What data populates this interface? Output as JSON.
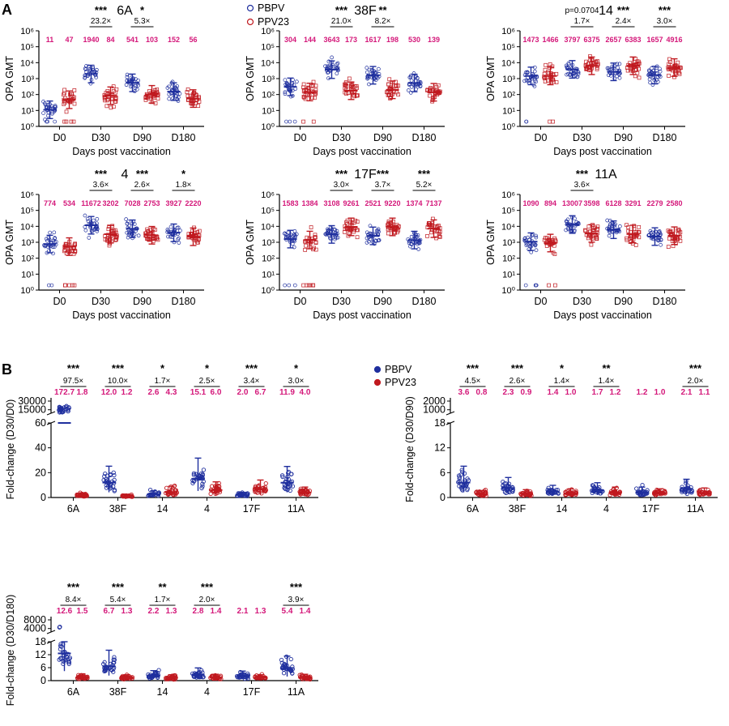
{
  "figure": {
    "panel_a_letter": "A",
    "panel_b_letter": "B",
    "legend": [
      {
        "name": "PBPV",
        "color": "#1f2f9e"
      },
      {
        "name": "PPV23",
        "color": "#c0191f"
      }
    ]
  },
  "chart_data": [
    {
      "type": "scatter",
      "panel": "A",
      "title": "6A",
      "xlabel": "Days post vaccination",
      "ylabel": "OPA GMT",
      "y_scale": "log",
      "ylim": [
        1,
        1000000
      ],
      "yticks": [
        "10⁰",
        "10¹",
        "10²",
        "10³",
        "10⁴",
        "10⁵",
        "10⁶"
      ],
      "categories": [
        "D0",
        "D30",
        "D90",
        "D180"
      ],
      "series": [
        {
          "name": "PBPV",
          "gmt": [
            11,
            1940,
            541,
            152
          ]
        },
        {
          "name": "PPV23",
          "gmt": [
            47,
            84,
            103,
            56
          ]
        }
      ],
      "gmt_labels": [
        [
          "11",
          "47"
        ],
        [
          "1940",
          "84"
        ],
        [
          "541",
          "103"
        ],
        [
          "152",
          "56"
        ]
      ],
      "comparisons": [
        null,
        {
          "stars": "***",
          "ratio": "23.2×"
        },
        {
          "stars": "*",
          "ratio": "5.3×"
        },
        null
      ]
    },
    {
      "type": "scatter",
      "panel": "A",
      "title": "38F",
      "xlabel": "Days post vaccination",
      "ylabel": "OPA GMT",
      "y_scale": "log",
      "ylim": [
        1,
        1000000
      ],
      "yticks": [
        "10⁰",
        "10¹",
        "10²",
        "10³",
        "10⁴",
        "10⁵",
        "10⁶"
      ],
      "categories": [
        "D0",
        "D30",
        "D90",
        "D180"
      ],
      "series": [
        {
          "name": "PBPV",
          "gmt": [
            304,
            3643,
            1617,
            530
          ]
        },
        {
          "name": "PPV23",
          "gmt": [
            144,
            173,
            198,
            139
          ]
        }
      ],
      "gmt_labels": [
        [
          "304",
          "144"
        ],
        [
          "3643",
          "173"
        ],
        [
          "1617",
          "198"
        ],
        [
          "530",
          "139"
        ]
      ],
      "comparisons": [
        null,
        {
          "stars": "***",
          "ratio": "21.0×"
        },
        {
          "stars": "**",
          "ratio": "8.2×"
        },
        null
      ]
    },
    {
      "type": "scatter",
      "panel": "A",
      "title": "14",
      "xlabel": "Days post vaccination",
      "ylabel": "OPA GMT",
      "y_scale": "log",
      "ylim": [
        1,
        1000000
      ],
      "yticks": [
        "10⁰",
        "10¹",
        "10²",
        "10³",
        "10⁴",
        "10⁵",
        "10⁶"
      ],
      "categories": [
        "D0",
        "D30",
        "D90",
        "D180"
      ],
      "series": [
        {
          "name": "PBPV",
          "gmt": [
            1473,
            3797,
            2657,
            1657
          ]
        },
        {
          "name": "PPV23",
          "gmt": [
            1466,
            6375,
            6383,
            4916
          ]
        }
      ],
      "gmt_labels": [
        [
          "1473",
          "1466"
        ],
        [
          "3797",
          "6375"
        ],
        [
          "2657",
          "6383"
        ],
        [
          "1657",
          "4916"
        ]
      ],
      "comparisons": [
        null,
        {
          "stars": "p=0.0704",
          "ratio": "1.7×"
        },
        {
          "stars": "***",
          "ratio": "2.4×"
        },
        {
          "stars": "***",
          "ratio": "3.0×"
        }
      ]
    },
    {
      "type": "scatter",
      "panel": "A",
      "title": "4",
      "xlabel": "Days post vaccination",
      "ylabel": "OPA GMT",
      "y_scale": "log",
      "ylim": [
        1,
        1000000
      ],
      "yticks": [
        "10⁰",
        "10¹",
        "10²",
        "10³",
        "10⁴",
        "10⁵",
        "10⁶"
      ],
      "categories": [
        "D0",
        "D30",
        "D90",
        "D180"
      ],
      "series": [
        {
          "name": "PBPV",
          "gmt": [
            774,
            11672,
            7028,
            3927
          ]
        },
        {
          "name": "PPV23",
          "gmt": [
            534,
            3202,
            2753,
            2220
          ]
        }
      ],
      "gmt_labels": [
        [
          "774",
          "534"
        ],
        [
          "11672",
          "3202"
        ],
        [
          "7028",
          "2753"
        ],
        [
          "3927",
          "2220"
        ]
      ],
      "comparisons": [
        null,
        {
          "stars": "***",
          "ratio": "3.6×"
        },
        {
          "stars": "***",
          "ratio": "2.6×"
        },
        {
          "stars": "*",
          "ratio": "1.8×"
        }
      ]
    },
    {
      "type": "scatter",
      "panel": "A",
      "title": "17F",
      "xlabel": "Days post vaccination",
      "ylabel": "OPA GMT",
      "y_scale": "log",
      "ylim": [
        1,
        1000000
      ],
      "yticks": [
        "10⁰",
        "10¹",
        "10²",
        "10³",
        "10⁴",
        "10⁵",
        "10⁶"
      ],
      "categories": [
        "D0",
        "D30",
        "D90",
        "D180"
      ],
      "series": [
        {
          "name": "PBPV",
          "gmt": [
            1583,
            3108,
            2521,
            1374
          ]
        },
        {
          "name": "PPV23",
          "gmt": [
            1384,
            9261,
            9220,
            7137
          ]
        }
      ],
      "gmt_labels": [
        [
          "1583",
          "1384"
        ],
        [
          "3108",
          "9261"
        ],
        [
          "2521",
          "9220"
        ],
        [
          "1374",
          "7137"
        ]
      ],
      "comparisons": [
        null,
        {
          "stars": "***",
          "ratio": "3.0×"
        },
        {
          "stars": "***",
          "ratio": "3.7×"
        },
        {
          "stars": "***",
          "ratio": "5.2×"
        }
      ]
    },
    {
      "type": "scatter",
      "panel": "A",
      "title": "11A",
      "xlabel": "Days post vaccination",
      "ylabel": "OPA GMT",
      "y_scale": "log",
      "ylim": [
        1,
        1000000
      ],
      "yticks": [
        "10⁰",
        "10¹",
        "10²",
        "10³",
        "10⁴",
        "10⁵",
        "10⁶"
      ],
      "categories": [
        "D0",
        "D30",
        "D90",
        "D180"
      ],
      "series": [
        {
          "name": "PBPV",
          "gmt": [
            1090,
            13007,
            6128,
            2279
          ]
        },
        {
          "name": "PPV23",
          "gmt": [
            894,
            3598,
            3291,
            2580
          ]
        }
      ],
      "gmt_labels": [
        [
          "1090",
          "894"
        ],
        [
          "13007",
          "3598"
        ],
        [
          "6128",
          "3291"
        ],
        [
          "2279",
          "2580"
        ]
      ],
      "comparisons": [
        null,
        {
          "stars": "***",
          "ratio": "3.6×"
        },
        null,
        null
      ]
    },
    {
      "type": "scatter",
      "panel": "B",
      "ylabel": "Fold-change (D30/D0)",
      "y_scale": "broken",
      "lower_ylim": [
        0,
        60
      ],
      "lower_yticks": [
        "0",
        "20",
        "40",
        "60"
      ],
      "upper_yticks": [
        "15000",
        "30000"
      ],
      "categories": [
        "6A",
        "38F",
        "14",
        "4",
        "17F",
        "11A"
      ],
      "series": [
        {
          "name": "PBPV",
          "fold_change": [
            172.7,
            12.0,
            2.6,
            15.1,
            2.0,
            11.9
          ]
        },
        {
          "name": "PPV23",
          "fold_change": [
            1.8,
            1.2,
            4.3,
            6.0,
            6.7,
            4.0
          ]
        }
      ],
      "fc_labels": [
        [
          "172.7",
          "1.8"
        ],
        [
          "12.0",
          "1.2"
        ],
        [
          "2.6",
          "4.3"
        ],
        [
          "15.1",
          "6.0"
        ],
        [
          "2.0",
          "6.7"
        ],
        [
          "11.9",
          "4.0"
        ]
      ],
      "comparisons": [
        {
          "stars": "***",
          "ratio": "97.5×"
        },
        {
          "stars": "***",
          "ratio": "10.0×"
        },
        {
          "stars": "*",
          "ratio": "1.7×"
        },
        {
          "stars": "*",
          "ratio": "2.5×"
        },
        {
          "stars": "***",
          "ratio": "3.4×"
        },
        {
          "stars": "*",
          "ratio": "3.0×"
        }
      ]
    },
    {
      "type": "scatter",
      "panel": "B",
      "ylabel": "Fold-change (D30/D90)",
      "y_scale": "broken",
      "lower_ylim": [
        0,
        18
      ],
      "lower_yticks": [
        "0",
        "6",
        "12",
        "18"
      ],
      "upper_yticks": [
        "1000",
        "2000"
      ],
      "categories": [
        "6A",
        "38F",
        "14",
        "4",
        "17F",
        "11A"
      ],
      "series": [
        {
          "name": "PBPV",
          "fold_change": [
            3.6,
            2.3,
            1.4,
            1.7,
            1.2,
            2.1
          ]
        },
        {
          "name": "PPV23",
          "fold_change": [
            0.8,
            0.9,
            1.0,
            1.2,
            1.0,
            1.1
          ]
        }
      ],
      "fc_labels": [
        [
          "3.6",
          "0.8"
        ],
        [
          "2.3",
          "0.9"
        ],
        [
          "1.4",
          "1.0"
        ],
        [
          "1.7",
          "1.2"
        ],
        [
          "1.2",
          "1.0"
        ],
        [
          "2.1",
          "1.1"
        ]
      ],
      "comparisons": [
        {
          "stars": "***",
          "ratio": "4.5×"
        },
        {
          "stars": "***",
          "ratio": "2.6×"
        },
        {
          "stars": "*",
          "ratio": "1.4×"
        },
        {
          "stars": "**",
          "ratio": "1.4×"
        },
        null,
        {
          "stars": "***",
          "ratio": "2.0×"
        }
      ]
    },
    {
      "type": "scatter",
      "panel": "B",
      "ylabel": "Fold-change (D30/D180)",
      "y_scale": "broken",
      "lower_ylim": [
        0,
        18
      ],
      "lower_yticks": [
        "0",
        "6",
        "12",
        "18"
      ],
      "upper_yticks": [
        "4000",
        "8000"
      ],
      "categories": [
        "6A",
        "38F",
        "14",
        "4",
        "17F",
        "11A"
      ],
      "series": [
        {
          "name": "PBPV",
          "fold_change": [
            12.6,
            6.7,
            2.2,
            2.8,
            2.1,
            5.4
          ]
        },
        {
          "name": "PPV23",
          "fold_change": [
            1.5,
            1.3,
            1.3,
            1.4,
            1.3,
            1.4
          ]
        }
      ],
      "fc_labels": [
        [
          "12.6",
          "1.5"
        ],
        [
          "6.7",
          "1.3"
        ],
        [
          "2.2",
          "1.3"
        ],
        [
          "2.8",
          "1.4"
        ],
        [
          "2.1",
          "1.3"
        ],
        [
          "5.4",
          "1.4"
        ]
      ],
      "comparisons": [
        {
          "stars": "***",
          "ratio": "8.4×"
        },
        {
          "stars": "***",
          "ratio": "5.4×"
        },
        {
          "stars": "**",
          "ratio": "1.7×"
        },
        {
          "stars": "***",
          "ratio": "2.0×"
        },
        null,
        {
          "stars": "***",
          "ratio": "3.9×"
        }
      ]
    }
  ]
}
